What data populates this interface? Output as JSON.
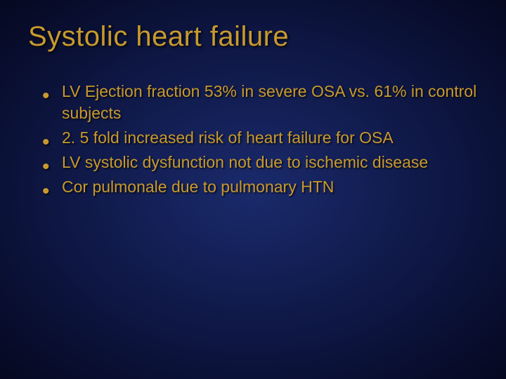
{
  "slide": {
    "title": "Systolic heart failure",
    "bullets": [
      "LV Ejection fraction 53% in severe OSA vs. 61% in control subjects",
      "2. 5 fold increased risk of heart failure for OSA",
      "LV systolic dysfunction not due to ischemic disease",
      "Cor pulmonale due to pulmonary HTN"
    ],
    "colors": {
      "text": "#c89a2e",
      "background_center": "#1a2a6c",
      "background_edge": "#050820"
    },
    "typography": {
      "title_fontsize": 40,
      "bullet_fontsize": 23,
      "font_family": "Verdana"
    }
  }
}
